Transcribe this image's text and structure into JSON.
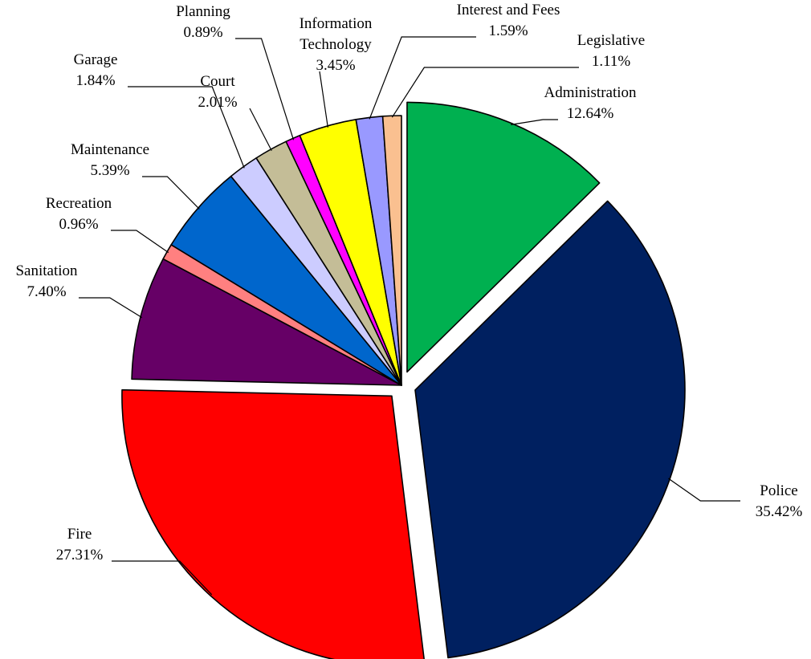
{
  "chart_data": {
    "type": "pie",
    "title": "",
    "slices": [
      {
        "name": "Administration",
        "value": 12.64,
        "label": "12.64%",
        "color": "#00b050",
        "exploded": true
      },
      {
        "name": "Police",
        "value": 35.42,
        "label": "35.42%",
        "color": "#002060",
        "exploded": true
      },
      {
        "name": "Fire",
        "value": 27.31,
        "label": "27.31%",
        "color": "#ff0000",
        "exploded": true
      },
      {
        "name": "Sanitation",
        "value": 7.4,
        "label": "7.40%",
        "color": "#660066",
        "exploded": false
      },
      {
        "name": "Recreation",
        "value": 0.96,
        "label": "0.96%",
        "color": "#ff8080",
        "exploded": false
      },
      {
        "name": "Maintenance",
        "value": 5.39,
        "label": "5.39%",
        "color": "#0066cc",
        "exploded": false
      },
      {
        "name": "Garage",
        "value": 1.84,
        "label": "1.84%",
        "color": "#ccccff",
        "exploded": false
      },
      {
        "name": "Court",
        "value": 2.01,
        "label": "2.01%",
        "color": "#c4bd97",
        "exploded": false
      },
      {
        "name": "Planning",
        "value": 0.89,
        "label": "0.89%",
        "color": "#ff00ff",
        "exploded": false
      },
      {
        "name": "Information Technology",
        "value": 3.45,
        "label": "3.45%",
        "color": "#ffff00",
        "exploded": false
      },
      {
        "name": "Interest and Fees",
        "value": 1.59,
        "label": "1.59%",
        "color": "#9999ff",
        "exploded": false
      },
      {
        "name": "Legislative",
        "value": 1.11,
        "label": "1.11%",
        "color": "#fac090",
        "exploded": false
      }
    ],
    "legend": "none",
    "data_labels": "category name and percentage with leader lines"
  }
}
